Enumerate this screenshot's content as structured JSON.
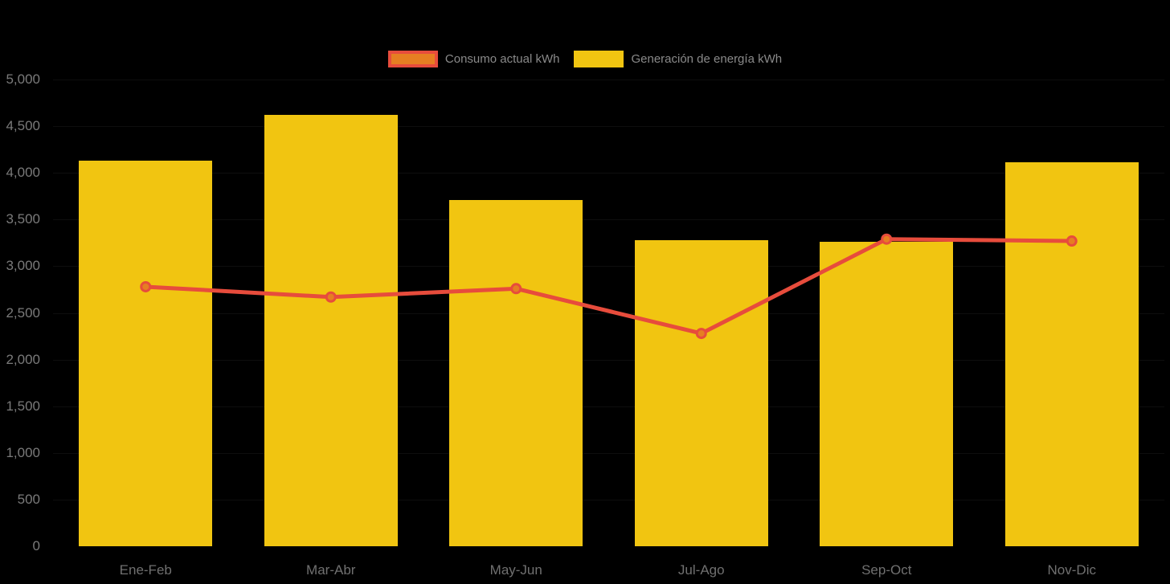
{
  "chart_data": {
    "type": "bar",
    "title": "",
    "categories": [
      "Ene-Feb",
      "Mar-Abr",
      "May-Jun",
      "Jul-Ago",
      "Sep-Oct",
      "Nov-Dic"
    ],
    "series": [
      {
        "name": "Consumo actual kWh",
        "type": "line",
        "values": [
          2780,
          2670,
          2760,
          2280,
          3290,
          3270
        ],
        "line_color": "#E74C3C",
        "marker_color": "#E67E22"
      },
      {
        "name": "Generación de energía kWh",
        "type": "bar",
        "values": [
          4130,
          4620,
          3710,
          3280,
          3260,
          4110
        ],
        "color": "#F1C511"
      }
    ],
    "xlabel": "",
    "ylabel": "",
    "ylim": [
      0,
      5000
    ],
    "ytick_step": 500,
    "ytick_labels": [
      "0",
      "500",
      "1,000",
      "1,500",
      "2,000",
      "2,500",
      "3,000",
      "3,500",
      "4,000",
      "4,500",
      "5,000"
    ],
    "grid": "horizontal-very-faint",
    "legend_position": "top-center",
    "background_color": "#000000",
    "axis_text_color": "#7A7A7A"
  }
}
